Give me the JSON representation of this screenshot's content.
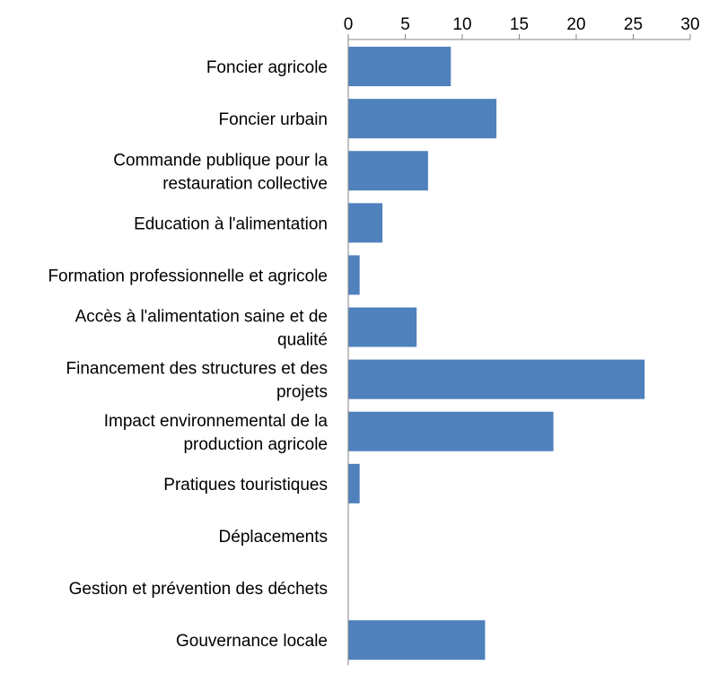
{
  "chart_data": {
    "type": "bar",
    "orientation": "horizontal",
    "x_axis_position": "top",
    "categories": [
      [
        "Foncier agricole"
      ],
      [
        "Foncier urbain"
      ],
      [
        "Commande publique pour la",
        "restauration collective"
      ],
      [
        "Education à l'alimentation"
      ],
      [
        "Formation professionnelle et agricole"
      ],
      [
        "Accès à l'alimentation saine et de",
        "qualité"
      ],
      [
        "Financement des structures et des",
        "projets"
      ],
      [
        "Impact environnemental de la",
        "production agricole"
      ],
      [
        "Pratiques touristiques"
      ],
      [
        "Déplacements"
      ],
      [
        "Gestion et prévention des déchets"
      ],
      [
        "Gouvernance locale"
      ]
    ],
    "values": [
      9,
      13,
      7,
      3,
      1,
      6,
      26,
      18,
      1,
      0,
      0,
      12
    ],
    "xlim": [
      0,
      30
    ],
    "x_ticks": [
      0,
      5,
      10,
      15,
      20,
      25,
      30
    ],
    "bar_color": "#4f81bd",
    "grid": false
  }
}
